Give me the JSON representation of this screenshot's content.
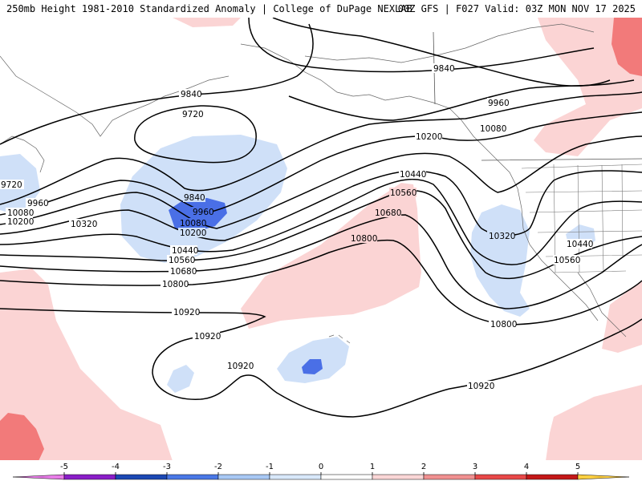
{
  "header": {
    "title_left": "250mb Height 1981-2010 Standardized Anomaly | College of DuPage NEXLAB",
    "title_right": "00Z GFS | F027 Valid: 03Z MON NOV 17 2025"
  },
  "contour_labels": {
    "c9840_a": "9840",
    "c9720_a": "9720",
    "c9720_b": "9720",
    "c9840_b": "9840",
    "c9840_c": "9840",
    "c9960_a": "9960",
    "c9960_b": "9960",
    "c9960_c": "9960",
    "c10080_a": "10080",
    "c10080_b": "10080",
    "c10080_c": "10080",
    "c10200_a": "10200",
    "c10200_b": "10200",
    "c10200_c": "10200",
    "c10320_a": "10320",
    "c10320_b": "10320",
    "c10440_a": "10440",
    "c10440_b": "10440",
    "c10440_c": "10440",
    "c10560_a": "10560",
    "c10560_b": "10560",
    "c10560_c": "10560",
    "c10680_a": "10680",
    "c10680_b": "10680",
    "c10800_a": "10800",
    "c10800_b": "10800",
    "c10800_c": "10800",
    "c10920_a": "10920",
    "c10920_b": "10920",
    "c10920_c": "10920",
    "c10920_d": "10920"
  },
  "legend": {
    "ticks": [
      "-5",
      "-4",
      "-3",
      "-2",
      "-1",
      "0",
      "1",
      "2",
      "3",
      "4",
      "5"
    ],
    "colors": [
      "#e87ce8",
      "#8a1ec8",
      "#1c48b4",
      "#4a78e6",
      "#a8c8f4",
      "#d8e8fa",
      "#ffffff",
      "#fad6d6",
      "#f09090",
      "#e84848",
      "#c41818",
      "#ff9a18",
      "#ffd040"
    ]
  },
  "colors": {
    "neg1": "#cfe0f8",
    "neg2": "#4a6fe6",
    "pos1": "#fbd4d4",
    "pos2": "#f27a7a"
  }
}
